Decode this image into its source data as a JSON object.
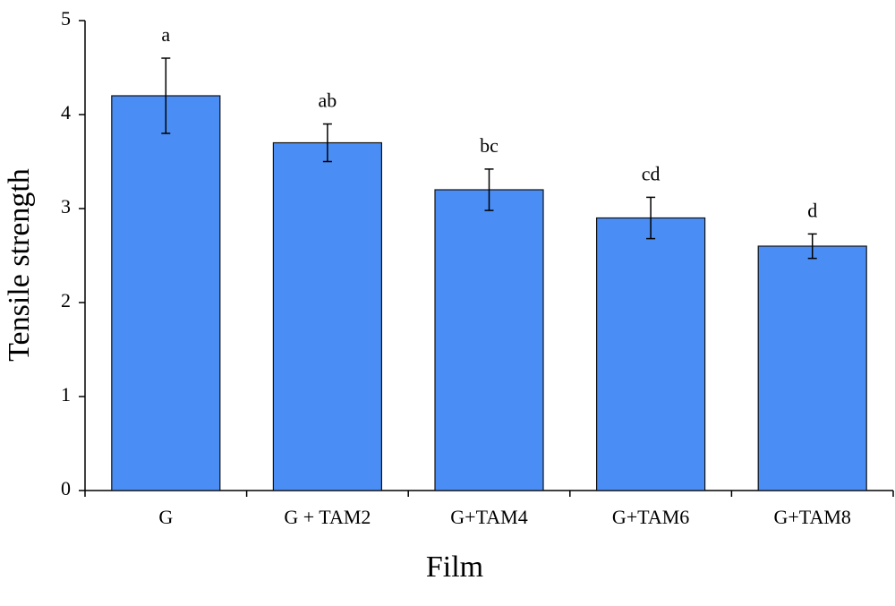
{
  "chart_data": {
    "type": "bar",
    "x_label": "Film",
    "y_label": "Tensile strength",
    "categories": [
      "G",
      "G + TAM2",
      "G+TAM4",
      "G+TAM6",
      "G+TAM8"
    ],
    "values": [
      4.2,
      3.7,
      3.2,
      2.9,
      2.6
    ],
    "errors": [
      0.4,
      0.2,
      0.22,
      0.22,
      0.13
    ],
    "annotations": [
      "a",
      "ab",
      "bc",
      "cd",
      "d"
    ],
    "color": "#4a8ef5",
    "ylim": [
      0,
      5
    ],
    "yticks": [
      0,
      1,
      2,
      3,
      4,
      5
    ],
    "grid": false
  }
}
